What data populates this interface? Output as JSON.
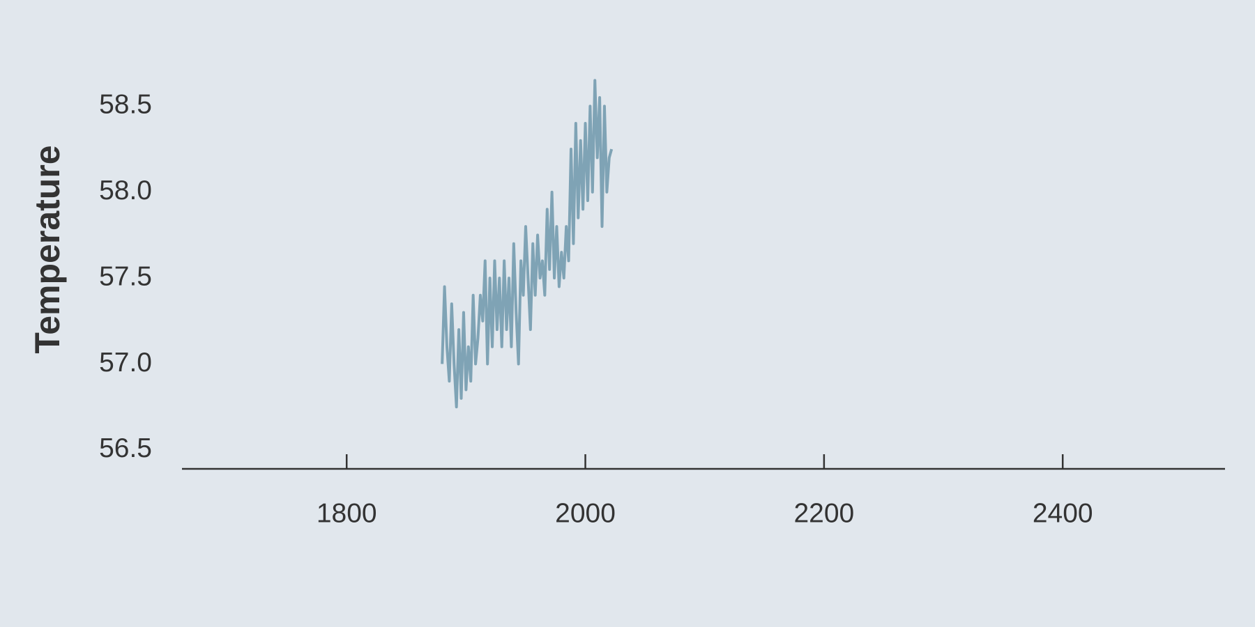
{
  "chart_data": {
    "type": "line",
    "y_label": "Temperature",
    "x": [
      1880,
      1882,
      1884,
      1886,
      1888,
      1890,
      1892,
      1894,
      1896,
      1898,
      1900,
      1902,
      1904,
      1906,
      1908,
      1910,
      1912,
      1914,
      1916,
      1918,
      1920,
      1922,
      1924,
      1926,
      1928,
      1930,
      1932,
      1934,
      1936,
      1938,
      1940,
      1942,
      1944,
      1946,
      1948,
      1950,
      1952,
      1954,
      1956,
      1958,
      1960,
      1962,
      1964,
      1966,
      1968,
      1970,
      1972,
      1974,
      1976,
      1978,
      1980,
      1982,
      1984,
      1986,
      1988,
      1990,
      1992,
      1994,
      1996,
      1998,
      2000,
      2002,
      2004,
      2006,
      2008,
      2010,
      2012,
      2014,
      2016,
      2018,
      2020,
      2022
    ],
    "values": [
      57.0,
      57.45,
      57.1,
      56.9,
      57.35,
      57.0,
      56.75,
      57.2,
      56.8,
      57.3,
      56.85,
      57.1,
      56.9,
      57.4,
      57.0,
      57.15,
      57.4,
      57.25,
      57.6,
      57.0,
      57.5,
      57.1,
      57.6,
      57.2,
      57.5,
      57.1,
      57.6,
      57.2,
      57.5,
      57.1,
      57.7,
      57.3,
      57.0,
      57.6,
      57.4,
      57.8,
      57.5,
      57.2,
      57.7,
      57.4,
      57.75,
      57.5,
      57.6,
      57.4,
      57.9,
      57.55,
      58.0,
      57.5,
      57.8,
      57.45,
      57.65,
      57.5,
      57.8,
      57.6,
      58.25,
      57.7,
      58.4,
      57.85,
      58.3,
      57.9,
      58.4,
      57.95,
      58.5,
      58.0,
      58.65,
      58.2,
      58.55,
      57.8,
      58.5,
      58.0,
      58.2,
      58.25
    ],
    "color": "#7fa3b5",
    "xlim": [
      1662,
      2536
    ],
    "ylim": [
      56.39,
      58.7
    ],
    "xticks": [
      1800,
      2000,
      2200,
      2400
    ],
    "yticks": [
      56.5,
      {
        "value": 57,
        "label": "57.0"
      },
      57.5,
      {
        "value": 58,
        "label": "58.0"
      },
      58.5
    ],
    "grid": false
  }
}
